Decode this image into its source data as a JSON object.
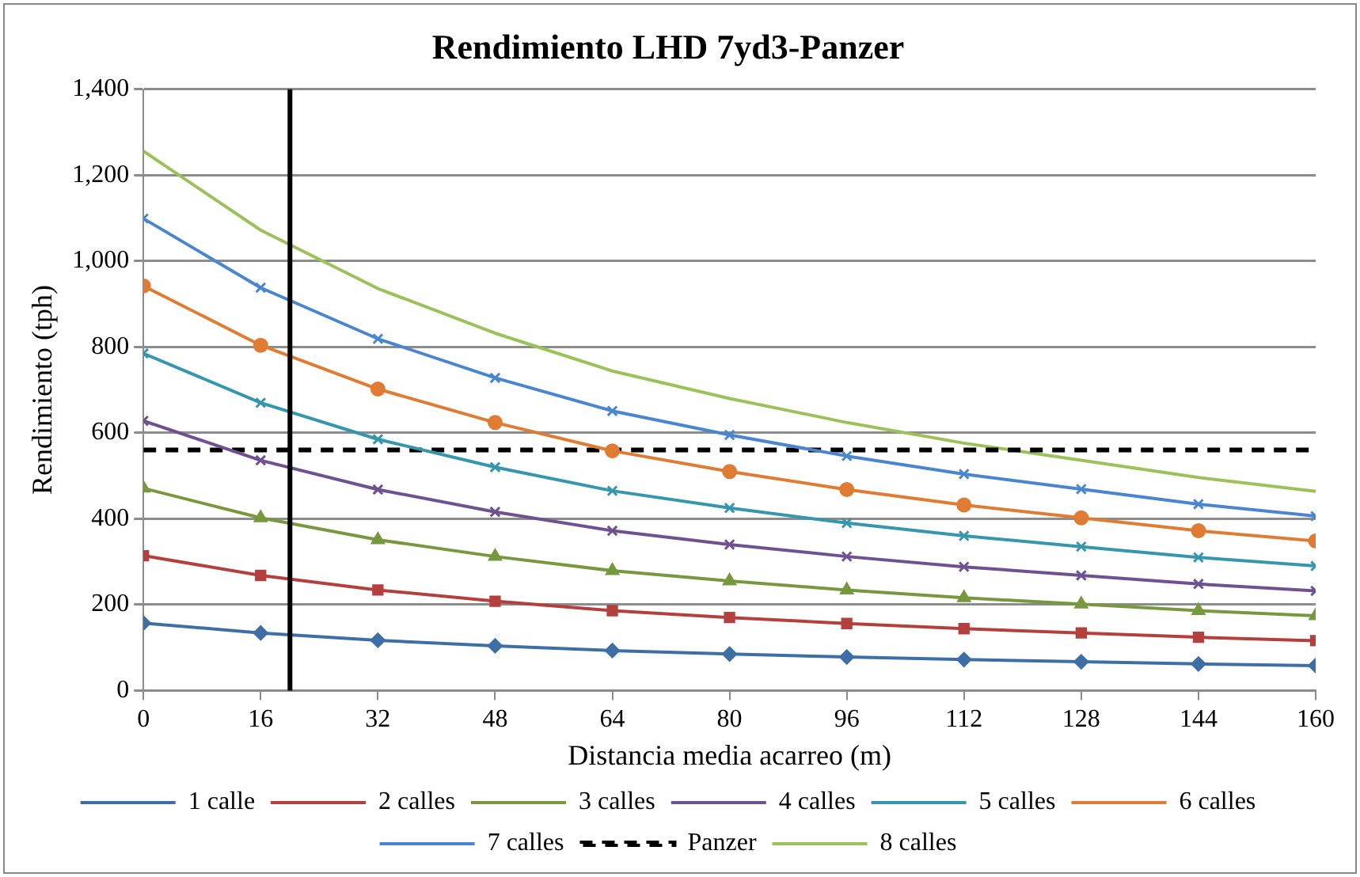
{
  "chart_data": {
    "type": "line",
    "title": "Rendimiento LHD 7yd3-Panzer",
    "xlabel": "Distancia media acarreo (m)",
    "ylabel": "Rendimiento (tph)",
    "x": [
      0,
      16,
      32,
      48,
      64,
      80,
      96,
      112,
      128,
      144,
      160
    ],
    "xlim": [
      0,
      160
    ],
    "xticks": [
      0,
      16,
      32,
      48,
      64,
      80,
      96,
      112,
      128,
      144,
      160
    ],
    "ylim": [
      0,
      1400
    ],
    "yticks": [
      0,
      200,
      400,
      600,
      800,
      {
        "value": 1000,
        "label": "1,000"
      },
      {
        "value": 1200,
        "label": "1,200"
      },
      {
        "value": 1400,
        "label": "1,400"
      }
    ],
    "grid": "y",
    "legend": "bottom",
    "line_style": "solid",
    "series": [
      {
        "name": "1 calle",
        "color": "#3e6ea6",
        "marker": "diamond",
        "values": [
          157,
          134,
          117,
          104,
          93,
          85,
          78,
          72,
          67,
          62,
          58
        ]
      },
      {
        "name": "2 calles",
        "color": "#b3403d",
        "marker": "square",
        "values": [
          314,
          268,
          234,
          208,
          186,
          170,
          156,
          144,
          134,
          124,
          116
        ]
      },
      {
        "name": "3 calles",
        "color": "#77983e",
        "marker": "triangle",
        "values": [
          471,
          402,
          351,
          312,
          279,
          255,
          234,
          216,
          201,
          186,
          174
        ]
      },
      {
        "name": "4 calles",
        "color": "#6e5191",
        "marker": "cross",
        "values": [
          628,
          536,
          468,
          416,
          372,
          340,
          312,
          288,
          268,
          248,
          232
        ]
      },
      {
        "name": "5 calles",
        "color": "#3596ad",
        "marker": "cross",
        "values": [
          785,
          670,
          585,
          520,
          465,
          425,
          390,
          360,
          335,
          310,
          290
        ]
      },
      {
        "name": "6 calles",
        "color": "#e07b34",
        "marker": "circle",
        "values": [
          942,
          804,
          702,
          624,
          558,
          510,
          468,
          432,
          402,
          372,
          348
        ]
      },
      {
        "name": "7 calles",
        "color": "#4a86d0",
        "marker": "cross",
        "values": [
          1099,
          938,
          819,
          728,
          651,
          595,
          546,
          504,
          469,
          434,
          406
        ]
      },
      {
        "name": "Panzer",
        "color": "#000000",
        "marker": "none",
        "line_style": "dashed",
        "values": [
          560,
          560,
          560,
          560,
          560,
          560,
          560,
          560,
          560,
          560,
          560
        ]
      },
      {
        "name": "8 calles",
        "color": "#9bc25a",
        "marker": "none",
        "values": [
          1256,
          1072,
          936,
          832,
          744,
          680,
          624,
          576,
          536,
          496,
          464
        ]
      }
    ],
    "ref_lines": [
      {
        "axis": "x",
        "value": 20,
        "color": "#000000"
      }
    ]
  }
}
